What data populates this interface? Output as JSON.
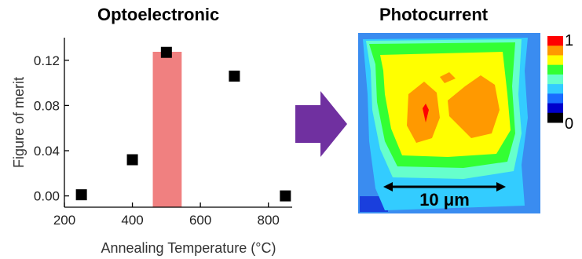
{
  "left_panel": {
    "title": "Optoelectronic"
  },
  "right_panel": {
    "title": "Photocurrent",
    "colorbar": {
      "max_label": "1",
      "min_label": "0",
      "colors": [
        "#000000",
        "#0000cc",
        "#1a6cff",
        "#33ccff",
        "#66ffcc",
        "#33ff33",
        "#ffff00",
        "#ff9900",
        "#ff0000"
      ]
    },
    "scale_bar_label": "10 μm"
  },
  "chart_data": {
    "type": "scatter",
    "xlabel": "Annealing Temperature (°C)",
    "ylabel": "Figure of merit",
    "xlim": [
      200,
      870
    ],
    "ylim": [
      -0.01,
      0.14
    ],
    "xticks": [
      200,
      400,
      600,
      800
    ],
    "xtick_labels": [
      "200",
      "400",
      "600",
      "800"
    ],
    "yticks": [
      0.0,
      0.04,
      0.08,
      0.12
    ],
    "ytick_labels": [
      "0.00",
      "0.04",
      "0.08",
      "0.12"
    ],
    "points": [
      {
        "x": 250,
        "y": 0.001
      },
      {
        "x": 400,
        "y": 0.032
      },
      {
        "x": 500,
        "y": 0.127
      },
      {
        "x": 700,
        "y": 0.106
      },
      {
        "x": 850,
        "y": 0.0
      }
    ],
    "highlight": {
      "x_from": 460,
      "x_to": 545,
      "color": "#f08080"
    },
    "marker_color": "#000000",
    "grid": false
  },
  "arrow_color": "#7030a0"
}
